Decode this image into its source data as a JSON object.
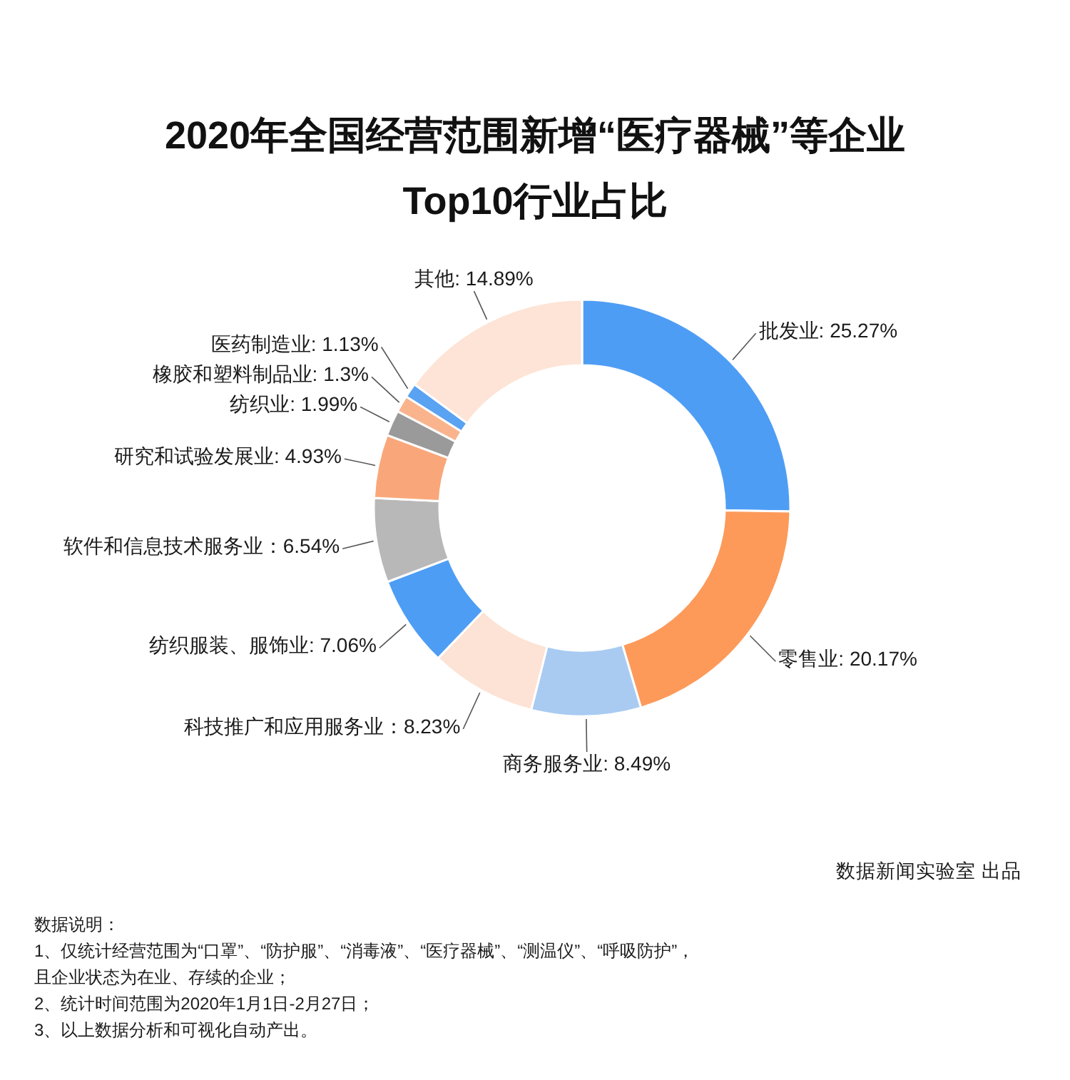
{
  "chart_data": {
    "type": "donut",
    "title": "2020年全国经营范围新增“医疗器械”等企业\nTop10行业占比",
    "categories": [
      "批发业",
      "零售业",
      "商务服务业",
      "科技推广和应用服务业",
      "纺织服装、服饰业",
      "软件和信息技术服务业",
      "研究和试验发展业",
      "纺织业",
      "橡胶和塑料制品业",
      "医药制造业",
      "其他"
    ],
    "values": [
      25.27,
      20.17,
      8.49,
      8.23,
      7.06,
      6.54,
      4.93,
      1.99,
      1.3,
      1.13,
      14.89
    ],
    "colors": [
      "#4e9df5",
      "#fd9a5a",
      "#a9cbf2",
      "#fde3d5",
      "#4e9df5",
      "#b8b8b8",
      "#f9a77a",
      "#9a9a9a",
      "#f9b48d",
      "#5aa2f2",
      "#fde4d6"
    ],
    "value_labels": [
      ": 25.27%",
      ": 20.17%",
      ": 8.49%",
      "：8.23%",
      ": 7.06%",
      "：6.54%",
      ": 4.93%",
      ": 1.99%",
      ": 1.3%",
      ": 1.13%",
      ": 14.89%"
    ],
    "annotations": [
      "数据新闻实验室 出品",
      "数据说明：",
      "1、仅统计经营范围为“口罩”、“防护服”、“消毒液”、“医疗器械”、“测温仪”、“呼吸防护”，",
      "且企业状态为在业、存续的企业；",
      "2、统计时间范围为2020年1月1日-2月27日；",
      "3、以上数据分析和可视化自动产出。"
    ]
  }
}
